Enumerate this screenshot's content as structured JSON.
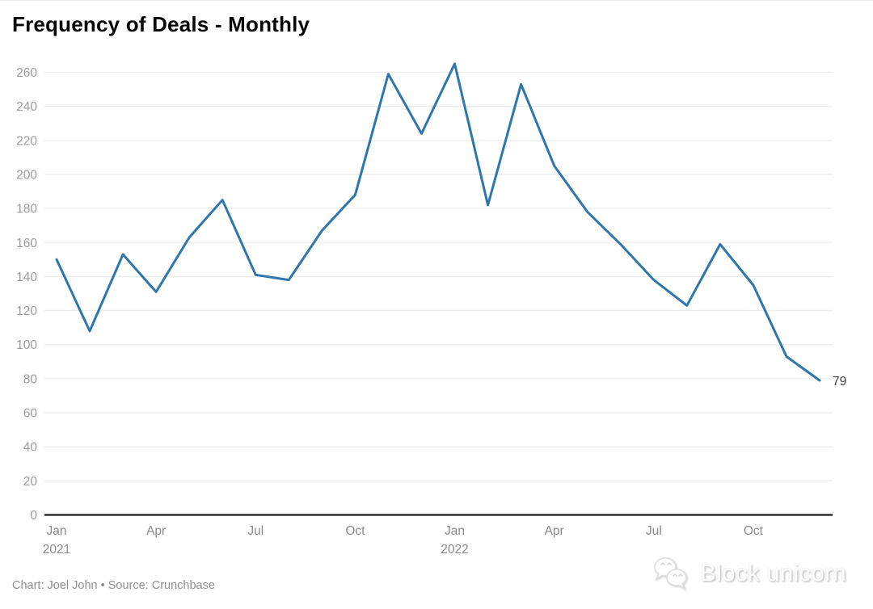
{
  "header": {
    "title": "Frequency of Deals - Monthly"
  },
  "chart_data": {
    "type": "line",
    "title": "Frequency of Deals - Monthly",
    "xlabel": "",
    "ylabel": "",
    "x": [
      "Jan 2021",
      "Feb 2021",
      "Mar 2021",
      "Apr 2021",
      "May 2021",
      "Jun 2021",
      "Jul 2021",
      "Aug 2021",
      "Sep 2021",
      "Oct 2021",
      "Nov 2021",
      "Dec 2021",
      "Jan 2022",
      "Feb 2022",
      "Mar 2022",
      "Apr 2022",
      "May 2022",
      "Jun 2022",
      "Jul 2022",
      "Aug 2022",
      "Sep 2022",
      "Oct 2022",
      "Nov 2022",
      "Dec 2022"
    ],
    "values": [
      150,
      108,
      153,
      131,
      163,
      185,
      141,
      138,
      167,
      188,
      259,
      224,
      265,
      182,
      253,
      205,
      178,
      159,
      138,
      123,
      159,
      135,
      93,
      79
    ],
    "ylim": [
      0,
      260
    ],
    "y_ticks": [
      0,
      20,
      40,
      60,
      80,
      100,
      120,
      140,
      160,
      180,
      200,
      220,
      240,
      260
    ],
    "x_tick_indices": [
      0,
      3,
      6,
      9,
      12,
      15,
      18,
      21
    ],
    "x_tick_labels": [
      "Jan",
      "Apr",
      "Jul",
      "Oct",
      "Jan",
      "Apr",
      "Jul",
      "Oct"
    ],
    "x_tick_years": {
      "0": "2021",
      "12": "2022"
    },
    "grid": "horizontal",
    "legend": "none",
    "end_label": "79",
    "colors": {
      "line": "#2f76ad",
      "gridline": "#ececec",
      "axis_line": "#1a1a1a",
      "y_tick_text": "#9c9c9c",
      "x_tick_text": "#8a8a8a",
      "end_label_text": "#3d3d3d"
    }
  },
  "footer": {
    "credit": "Chart: Joel John • Source: Crunchbase"
  },
  "watermark": {
    "text": "Block unicorn",
    "icon": "chat-bubbles-icon"
  }
}
